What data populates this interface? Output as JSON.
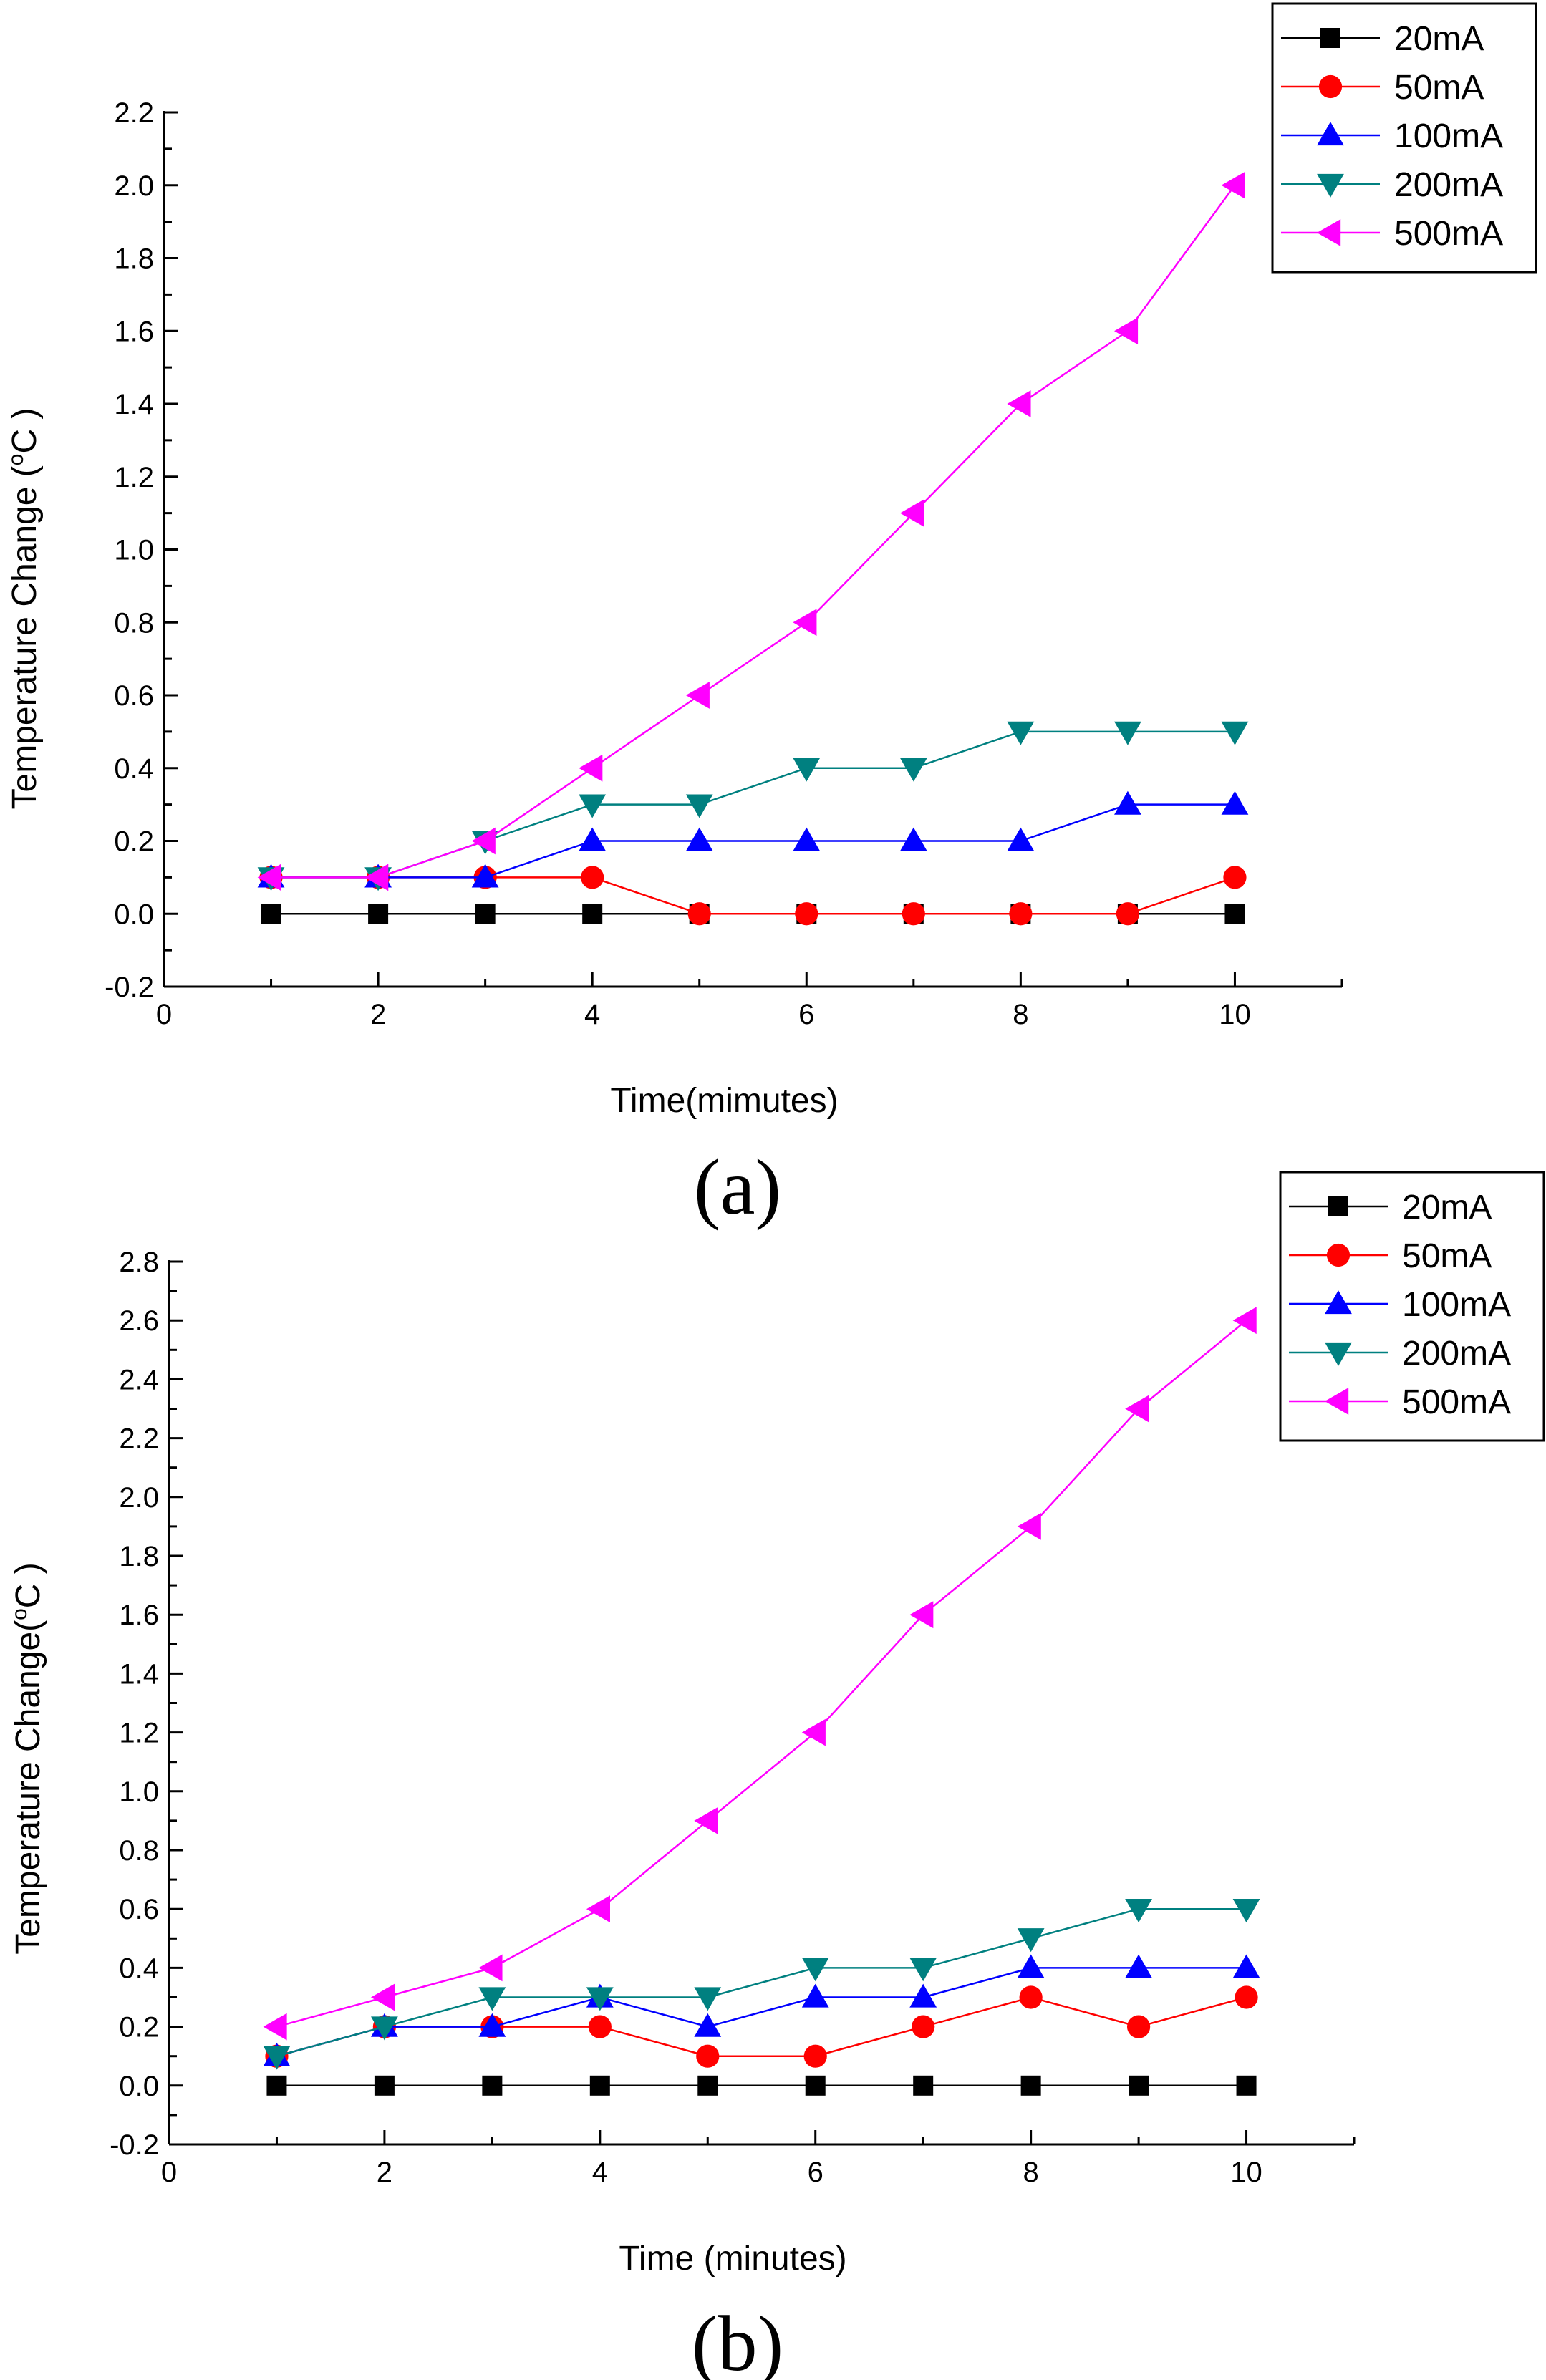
{
  "chart_data": [
    {
      "type": "line",
      "panel_label": "(a)",
      "xlabel": "Time(mimutes)",
      "ylabel_prefix": "Temperature Change (",
      "ylabel_degree": "o",
      "ylabel_suffix": "C )",
      "xlim": [
        0,
        11
      ],
      "ylim": [
        -0.2,
        2.2
      ],
      "xticks": [
        "0",
        "2",
        "4",
        "6",
        "8",
        "10"
      ],
      "yticks": [
        "-0.2",
        "0.0",
        "0.2",
        "0.4",
        "0.6",
        "0.8",
        "1.0",
        "1.2",
        "1.4",
        "1.6",
        "1.8",
        "2.0",
        "2.2"
      ],
      "x": [
        1,
        2,
        3,
        4,
        5,
        6,
        7,
        8,
        9,
        10
      ],
      "legend_position": "top-right",
      "series": [
        {
          "name": "20mA",
          "color": "#000000",
          "marker": "square",
          "values": [
            0,
            0,
            0,
            0,
            0,
            0,
            0,
            0,
            0,
            0
          ]
        },
        {
          "name": "50mA",
          "color": "#ff0000",
          "marker": "circle",
          "values": [
            0.1,
            0.1,
            0.1,
            0.1,
            0,
            0,
            0,
            0,
            0,
            0.1
          ]
        },
        {
          "name": "100mA",
          "color": "#0000ff",
          "marker": "triangle-up",
          "values": [
            0.1,
            0.1,
            0.1,
            0.2,
            0.2,
            0.2,
            0.2,
            0.2,
            0.3,
            0.3
          ]
        },
        {
          "name": "200mA",
          "color": "#008080",
          "marker": "triangle-down",
          "values": [
            0.1,
            0.1,
            0.2,
            0.3,
            0.3,
            0.4,
            0.4,
            0.5,
            0.5,
            0.5
          ]
        },
        {
          "name": "500mA",
          "color": "#ff00ff",
          "marker": "triangle-left",
          "values": [
            0.1,
            0.1,
            0.2,
            0.4,
            0.6,
            0.8,
            1.1,
            1.4,
            1.6,
            2.0
          ]
        }
      ]
    },
    {
      "type": "line",
      "panel_label": "(b)",
      "xlabel": "Time (minutes)",
      "ylabel_prefix": "Temperature Change(",
      "ylabel_degree": "o",
      "ylabel_suffix": "C )",
      "xlim": [
        0,
        11
      ],
      "ylim": [
        -0.2,
        2.8
      ],
      "xticks": [
        "0",
        "2",
        "4",
        "6",
        "8",
        "10"
      ],
      "yticks": [
        "-0.2",
        "0.0",
        "0.2",
        "0.4",
        "0.6",
        "0.8",
        "1.0",
        "1.2",
        "1.4",
        "1.6",
        "1.8",
        "2.0",
        "2.2",
        "2.4",
        "2.6",
        "2.8"
      ],
      "x": [
        1,
        2,
        3,
        4,
        5,
        6,
        7,
        8,
        9,
        10
      ],
      "legend_position": "top-right",
      "series": [
        {
          "name": "20mA",
          "color": "#000000",
          "marker": "square",
          "values": [
            0,
            0,
            0,
            0,
            0,
            0,
            0,
            0,
            0,
            0
          ]
        },
        {
          "name": "50mA",
          "color": "#ff0000",
          "marker": "circle",
          "values": [
            0.1,
            0.2,
            0.2,
            0.2,
            0.1,
            0.1,
            0.2,
            0.3,
            0.2,
            0.3
          ]
        },
        {
          "name": "100mA",
          "color": "#0000ff",
          "marker": "triangle-up",
          "values": [
            0.1,
            0.2,
            0.2,
            0.3,
            0.2,
            0.3,
            0.3,
            0.4,
            0.4,
            0.4
          ]
        },
        {
          "name": "200mA",
          "color": "#008080",
          "marker": "triangle-down",
          "values": [
            0.1,
            0.2,
            0.3,
            0.3,
            0.3,
            0.4,
            0.4,
            0.5,
            0.6,
            0.6
          ]
        },
        {
          "name": "500mA",
          "color": "#ff00ff",
          "marker": "triangle-left",
          "values": [
            0.2,
            0.3,
            0.4,
            0.6,
            0.9,
            1.2,
            1.6,
            1.9,
            2.3,
            2.6
          ]
        }
      ]
    }
  ]
}
